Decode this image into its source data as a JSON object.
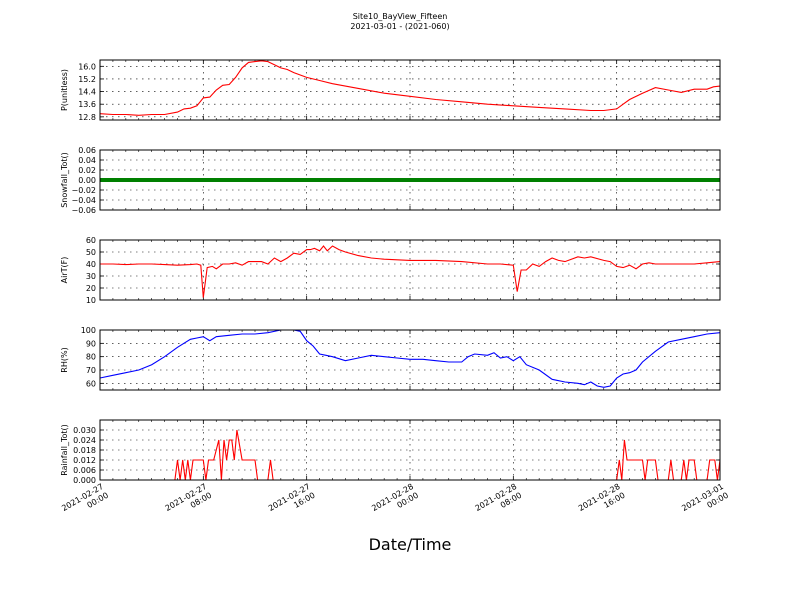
{
  "title": "Site10_BayView_Fifteen",
  "subtitle": "2021-03-01 - (2021-060)",
  "xlabel": "Date/Time",
  "x_ticks": [
    {
      "t": 0,
      "l1": "2021-02-27",
      "l2": "00:00"
    },
    {
      "t": 8,
      "l1": "2021-02-27",
      "l2": "08:00"
    },
    {
      "t": 16,
      "l1": "2021-02-27",
      "l2": "16:00"
    },
    {
      "t": 24,
      "l1": "2021-02-28",
      "l2": "00:00"
    },
    {
      "t": 32,
      "l1": "2021-02-28",
      "l2": "08:00"
    },
    {
      "t": 40,
      "l1": "2021-02-28",
      "l2": "16:00"
    },
    {
      "t": 48,
      "l1": "2021-03-01",
      "l2": "00:00"
    }
  ],
  "chart_data": [
    {
      "type": "line",
      "ylabel": "P(unitless)",
      "color": "#ff0000",
      "ylim": [
        12.6,
        16.4
      ],
      "yticks": [
        12.8,
        13.6,
        14.4,
        15.2,
        16.0
      ],
      "ytick_labels": [
        "12.8",
        "13.6",
        "14.4",
        "15.2",
        "16.0"
      ],
      "x": [
        0,
        1,
        2,
        3,
        4,
        5,
        6,
        6.5,
        7,
        7.5,
        8,
        8.5,
        9,
        9.5,
        10,
        10.5,
        11,
        11.5,
        12,
        12.5,
        13,
        13.5,
        14,
        14.5,
        15,
        16,
        17,
        18,
        20,
        22,
        24,
        26,
        28,
        30,
        32,
        34,
        36,
        38,
        39,
        40,
        40.5,
        41,
        42,
        43,
        44,
        45,
        46,
        47,
        47.5,
        48
      ],
      "values": [
        13.0,
        12.95,
        12.95,
        12.9,
        12.95,
        12.95,
        13.1,
        13.3,
        13.35,
        13.5,
        14.0,
        14.05,
        14.5,
        14.8,
        14.85,
        15.3,
        15.9,
        16.25,
        16.3,
        16.35,
        16.3,
        16.1,
        15.9,
        15.8,
        15.6,
        15.3,
        15.1,
        14.9,
        14.6,
        14.3,
        14.1,
        13.9,
        13.75,
        13.6,
        13.5,
        13.4,
        13.3,
        13.2,
        13.2,
        13.3,
        13.6,
        13.9,
        14.3,
        14.65,
        14.5,
        14.35,
        14.55,
        14.55,
        14.7,
        14.75
      ]
    },
    {
      "type": "line",
      "ylabel": "Snowfall_Tot()",
      "color": "#008000",
      "ylim": [
        -0.06,
        0.06
      ],
      "yticks": [
        -0.06,
        -0.04,
        -0.02,
        0.0,
        0.02,
        0.04,
        0.06
      ],
      "ytick_labels": [
        "−0.06",
        "−0.04",
        "−0.02",
        "0.00",
        "0.02",
        "0.04",
        "0.06"
      ],
      "x": [
        0,
        48
      ],
      "values": [
        0,
        0
      ]
    },
    {
      "type": "line",
      "ylabel": "AirT(F)",
      "color": "#ff0000",
      "ylim": [
        10,
        60
      ],
      "yticks": [
        10,
        20,
        30,
        40,
        50,
        60
      ],
      "ytick_labels": [
        "10",
        "20",
        "30",
        "40",
        "50",
        "60"
      ],
      "x": [
        0,
        1,
        2,
        3,
        4,
        5,
        6,
        7,
        7.5,
        7.8,
        8,
        8.3,
        8.7,
        9,
        9.5,
        10,
        10.5,
        11,
        11.5,
        12,
        12.5,
        13,
        13.5,
        14,
        14.5,
        15,
        15.5,
        16,
        16.3,
        16.6,
        17,
        17.3,
        17.6,
        18,
        18.5,
        19,
        20,
        21,
        22,
        24,
        26,
        28,
        30,
        31,
        32,
        32.3,
        32.6,
        33,
        33.5,
        34,
        34.5,
        35,
        35.5,
        36,
        37,
        37.5,
        38,
        39,
        39.5,
        40,
        40.5,
        41,
        41.5,
        42,
        42.5,
        43,
        44,
        45,
        46,
        47,
        48
      ],
      "values": [
        40,
        40,
        39.5,
        40,
        40,
        39.5,
        39,
        39.5,
        40,
        39,
        12,
        37,
        38,
        36,
        40,
        40,
        41,
        39,
        42,
        42,
        42,
        40,
        45,
        42,
        45,
        49,
        48,
        52,
        52,
        53,
        51,
        55,
        51,
        55,
        52,
        50,
        47,
        45,
        44,
        43,
        43,
        42,
        40,
        40,
        39,
        17,
        35,
        35,
        40,
        38,
        42,
        45,
        43,
        42,
        46,
        45,
        46,
        43,
        42,
        38,
        37,
        39,
        36,
        40,
        41,
        40,
        40,
        40,
        40,
        41,
        42
      ]
    },
    {
      "type": "line",
      "ylabel": "RH(%)",
      "color": "#0000ff",
      "ylim": [
        55,
        100
      ],
      "yticks": [
        60,
        70,
        80,
        90,
        100
      ],
      "ytick_labels": [
        "60",
        "70",
        "80",
        "90",
        "100"
      ],
      "x": [
        0,
        1,
        2,
        3,
        4,
        5,
        6,
        7,
        7.5,
        8,
        8.5,
        9,
        10,
        11,
        12,
        13,
        14,
        15,
        15.5,
        16,
        16.5,
        17,
        17.5,
        18,
        19,
        20,
        21,
        22,
        23,
        24,
        25,
        26,
        27,
        28,
        28.5,
        29,
        30,
        30.5,
        31,
        31.5,
        32,
        32.5,
        33,
        34,
        35,
        36,
        37,
        37.5,
        38,
        38.5,
        39,
        39.5,
        40,
        40.5,
        41,
        41.5,
        42,
        43,
        44,
        45,
        46,
        47,
        48
      ],
      "values": [
        64,
        66,
        68,
        70,
        74,
        80,
        87,
        93,
        94,
        95,
        92,
        95,
        96,
        97,
        97,
        98,
        100,
        100,
        99,
        92,
        88,
        82,
        81,
        80,
        77,
        79,
        81,
        80,
        79,
        78,
        78,
        77,
        76,
        76,
        80,
        82,
        81,
        83,
        79,
        80,
        77,
        80,
        74,
        70,
        63,
        61,
        60,
        59,
        61,
        58,
        57,
        58,
        64,
        67,
        68,
        70,
        76,
        84,
        91,
        93,
        95,
        97,
        98
      ]
    },
    {
      "type": "line",
      "ylabel": "Rainfall_Tot()",
      "color": "#ff0000",
      "ylim": [
        0,
        0.036
      ],
      "yticks": [
        0.0,
        0.006,
        0.012,
        0.018,
        0.024,
        0.03
      ],
      "ytick_labels": [
        "0.000",
        "0.006",
        "0.012",
        "0.018",
        "0.024",
        "0.030"
      ],
      "x": [
        0,
        5.8,
        6,
        6.2,
        6.4,
        6.6,
        6.8,
        7,
        7.2,
        7.4,
        8,
        8.2,
        8.4,
        8.8,
        9.2,
        9.4,
        9.6,
        9.8,
        10,
        10.2,
        10.4,
        10.6,
        11,
        11.2,
        11.4,
        11.6,
        11.8,
        12,
        12.2,
        12.4,
        13,
        13.2,
        13.4,
        13.6,
        14,
        14.2,
        40,
        40.2,
        40.4,
        40.6,
        40.8,
        41,
        41.2,
        42,
        42.2,
        42.4,
        43,
        43.2,
        43.4,
        43.6,
        44,
        44.2,
        44.4,
        45,
        45.2,
        45.4,
        45.6,
        46,
        46.2,
        47,
        47.2,
        47.6,
        47.8,
        48
      ],
      "values": [
        0,
        0,
        0.012,
        0,
        0.012,
        0,
        0.012,
        0,
        0.012,
        0.012,
        0.012,
        0,
        0.012,
        0.012,
        0.024,
        0,
        0.024,
        0.012,
        0.024,
        0.024,
        0.012,
        0.03,
        0.012,
        0.012,
        0.012,
        0.012,
        0.012,
        0.012,
        0,
        0,
        0,
        0.012,
        0,
        0,
        0,
        0,
        0,
        0.012,
        0,
        0.024,
        0.012,
        0.012,
        0.012,
        0.012,
        0,
        0.012,
        0.012,
        0,
        0,
        0,
        0,
        0.012,
        0,
        0,
        0.012,
        0,
        0.012,
        0.012,
        0,
        0,
        0.012,
        0.012,
        0,
        0.012
      ]
    }
  ]
}
